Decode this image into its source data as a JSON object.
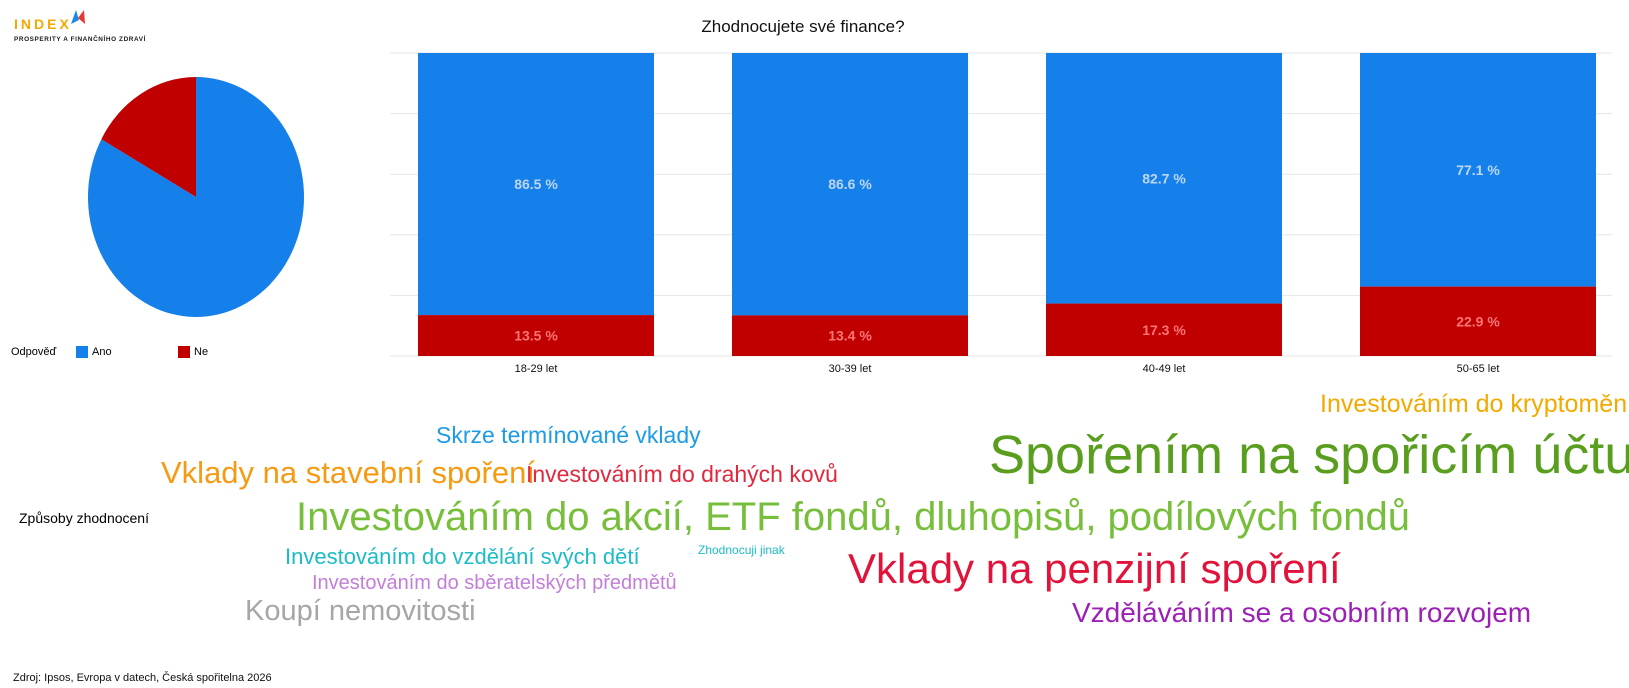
{
  "logo": {
    "word": "INDEX",
    "subtitle": "PROSPERITY A FINANČNÍHO ZDRAVÍ",
    "colors": {
      "word": "#f5a800",
      "mark_blue": "#1e88e5",
      "mark_red": "#e53935"
    }
  },
  "chart_data": [
    {
      "type": "pie",
      "categories": [
        "Ano",
        "Ne"
      ],
      "values": [
        83.0,
        17.0
      ],
      "colors": [
        "#1580ea",
        "#c00000"
      ],
      "legend": {
        "title": "Odpověď",
        "placement": "bottom"
      }
    },
    {
      "type": "bar",
      "stacked": true,
      "title": "Zhodnocujete své finance?",
      "categories": [
        "18-29 let",
        "30-39 let",
        "40-49 let",
        "50-65 let"
      ],
      "series": [
        {
          "name": "Ano",
          "values": [
            86.5,
            86.6,
            82.7,
            77.1
          ],
          "labels": [
            "86.5 %",
            "86.6 %",
            "82.7 %",
            "77.1 %"
          ],
          "color": "#1580ea",
          "label_color": "#bcd6f5"
        },
        {
          "name": "Ne",
          "values": [
            13.5,
            13.4,
            17.3,
            22.9
          ],
          "labels": [
            "13.5 %",
            "13.4 %",
            "17.3 %",
            "22.9 %"
          ],
          "color": "#c00000",
          "label_color": "#ff7575"
        }
      ],
      "ylim": [
        0,
        100
      ],
      "grid": true
    },
    {
      "type": "wordcloud",
      "title": "Způsoby zhodnocení",
      "words": [
        {
          "text": "Investováním do kryptoměn",
          "color": "#f2a900"
        },
        {
          "text": "Skrze termínované vklady",
          "color": "#1e9be5"
        },
        {
          "text": "Spořením na spořicím účtu",
          "color": "#5a9e1f"
        },
        {
          "text": "Vklady na stavební spoření",
          "color": "#f59a12"
        },
        {
          "text": "Investováním do drahých kovů",
          "color": "#e1283e"
        },
        {
          "text": "Investováním do akcií, ETF fondů, dluhopisů, podílových fondů",
          "color": "#77bf3b"
        },
        {
          "text": "Investováním do vzdělání svých dětí",
          "color": "#1cbcc7"
        },
        {
          "text": "Zhodnocuji jinak",
          "color": "#1cbcc7"
        },
        {
          "text": "Vklady na penzijní spoření",
          "color": "#e1133a"
        },
        {
          "text": "Investováním do sběratelských předmětů",
          "color": "#c27ed8"
        },
        {
          "text": "Koupí nemovitosti",
          "color": "#a6a6a6"
        },
        {
          "text": "Vzděláváním se a osobním rozvojem",
          "color": "#9c1fb6"
        }
      ]
    }
  ],
  "source": "Zdroj: Ipsos, Evropa v datech, Česká spořitelna 2026"
}
